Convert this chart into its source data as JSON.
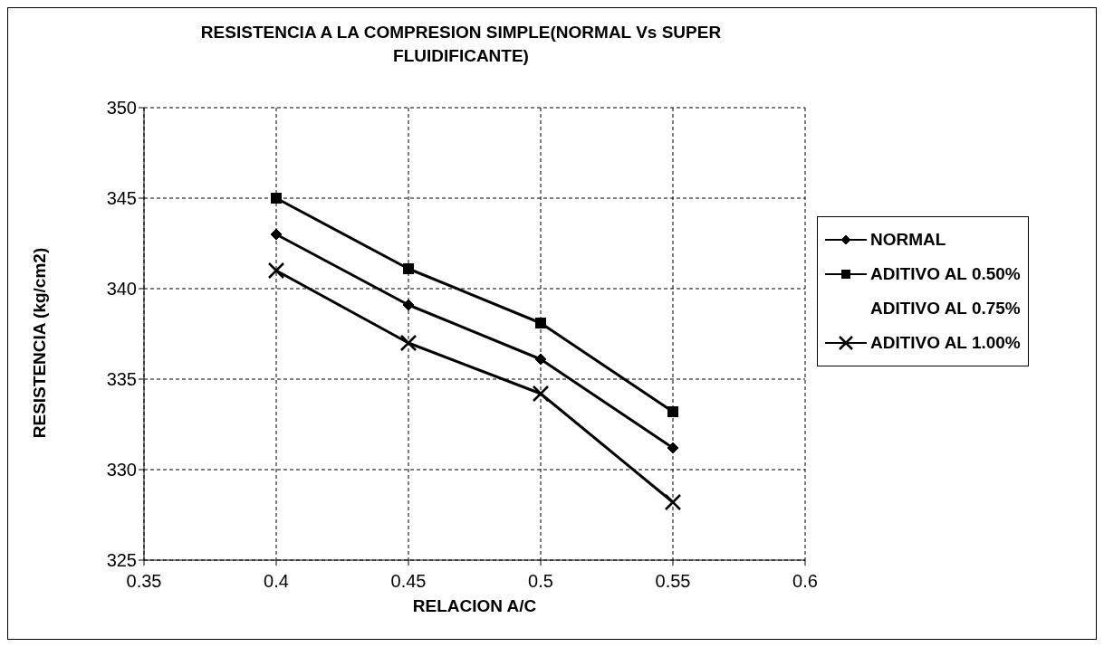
{
  "chart_data": {
    "type": "line",
    "title": "RESISTENCIA  A LA COMPRESION SIMPLE(NORMAL Vs SUPER FLUIDIFICANTE)",
    "xlabel": "RELACION A/C",
    "ylabel": "RESISTENCIA (kg/cm2)",
    "x": [
      0.4,
      0.45,
      0.5,
      0.55
    ],
    "series": [
      {
        "name": "NORMAL",
        "color": "#000000",
        "marker": "diamond",
        "values": [
          343,
          339.1,
          336.1,
          331.2
        ]
      },
      {
        "name": "ADITIVO AL 0.50%",
        "color": "#000000",
        "marker": "square",
        "values": [
          345,
          341.1,
          338.1,
          333.2
        ]
      },
      {
        "name": "ADITIVO AL 0.75%",
        "values": [
          null,
          null,
          null,
          null
        ]
      },
      {
        "name": "ADITIVO AL 1.00%",
        "color": "#000000",
        "marker": "cross",
        "values": [
          341,
          337,
          334.2,
          328.2
        ]
      }
    ],
    "xlim": [
      0.35,
      0.6
    ],
    "xticks": [
      0.35,
      0.4,
      0.45,
      0.5,
      0.55,
      0.6
    ],
    "ylim": [
      325,
      350
    ],
    "yticks": [
      325,
      330,
      335,
      340,
      345,
      350
    ],
    "grid": true,
    "legend": "right",
    "line_style": "solid"
  }
}
